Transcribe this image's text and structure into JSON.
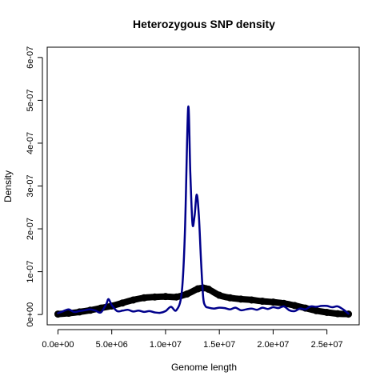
{
  "chart_data": {
    "type": "line",
    "title": "Heterozygous SNP density",
    "xlabel": "Genome length",
    "ylabel": "Density",
    "xlim": [
      -1000000,
      28000000
    ],
    "ylim": [
      -2.4e-08,
      6.24e-07
    ],
    "x_ticks": [
      0,
      5000000,
      10000000,
      15000000,
      20000000,
      25000000
    ],
    "x_tick_labels": [
      "0.0e+00",
      "5.0e+06",
      "1.0e+07",
      "1.5e+07",
      "2.0e+07",
      "2.5e+07"
    ],
    "y_ticks": [
      0,
      1e-07,
      2e-07,
      3e-07,
      4e-07,
      5e-07,
      6e-07
    ],
    "y_tick_labels": [
      "0e+00",
      "1e-07",
      "2e-07",
      "3e-07",
      "4e-07",
      "5e-07",
      "6e-07"
    ],
    "grid": false,
    "series": [
      {
        "color": "#00008B",
        "style": "thin-line",
        "x": [
          0,
          500000,
          1000000,
          1500000,
          2000000,
          2500000,
          3000000,
          3500000,
          4000000,
          4500000,
          4700000,
          5000000,
          5500000,
          6000000,
          6500000,
          7000000,
          7500000,
          8000000,
          8500000,
          9000000,
          9500000,
          10000000,
          10500000,
          11000000,
          11500000,
          11800000,
          12100000,
          12300000,
          12500000,
          12700000,
          12900000,
          13100000,
          13300000,
          13500000,
          13700000,
          14000000,
          14500000,
          15000000,
          15500000,
          16000000,
          16500000,
          17000000,
          17500000,
          18000000,
          18500000,
          19000000,
          19500000,
          20000000,
          20500000,
          21000000,
          21500000,
          22000000,
          22500000,
          23000000,
          23500000,
          24000000,
          24500000,
          25000000,
          25500000,
          26000000,
          26500000,
          27000000
        ],
        "y": [
          3e-09,
          8e-09,
          1.2e-08,
          6e-09,
          8e-09,
          1e-08,
          1.2e-08,
          9e-09,
          5e-09,
          2.5e-08,
          3.6e-08,
          2.2e-08,
          8e-09,
          9e-09,
          1.1e-08,
          7e-09,
          9e-09,
          6e-09,
          8e-09,
          5e-09,
          4e-09,
          8e-09,
          1.8e-08,
          1e-08,
          5e-08,
          1.9e-07,
          4.83e-07,
          3.3e-07,
          2.12e-07,
          2.3e-07,
          2.8e-07,
          2.3e-07,
          1.25e-07,
          4e-08,
          2e-08,
          1.6e-08,
          1.4e-08,
          1.6e-08,
          1.5e-08,
          1.2e-08,
          1.6e-08,
          1e-08,
          1.2e-08,
          1.4e-08,
          1.1e-08,
          1.6e-08,
          1.3e-08,
          1.7e-08,
          1.5e-08,
          1.9e-08,
          1e-08,
          8e-09,
          1.4e-08,
          1.2e-08,
          1.9e-08,
          1.8e-08,
          2e-08,
          2e-08,
          1.7e-08,
          1.9e-08,
          1.2e-08,
          2e-09
        ]
      },
      {
        "color": "#000000",
        "style": "thick-points",
        "x": [
          0,
          1000000,
          2000000,
          3000000,
          4000000,
          5000000,
          6000000,
          7000000,
          8000000,
          9000000,
          10000000,
          11000000,
          12000000,
          13000000,
          13500000,
          14000000,
          15000000,
          16000000,
          17000000,
          18000000,
          19000000,
          20000000,
          21000000,
          22000000,
          23000000,
          24000000,
          25000000,
          26000000,
          27000000
        ],
        "y": [
          1e-09,
          3e-09,
          6e-09,
          1e-08,
          1.5e-08,
          2e-08,
          2.7e-08,
          3.4e-08,
          3.9e-08,
          4.1e-08,
          4.2e-08,
          4.1e-08,
          4.8e-08,
          6e-08,
          6.2e-08,
          5.9e-08,
          4.5e-08,
          3.9e-08,
          3.6e-08,
          3.4e-08,
          3.1e-08,
          2.9e-08,
          2.6e-08,
          2.1e-08,
          1.5e-08,
          9e-09,
          5e-09,
          2e-09,
          1e-09
        ]
      }
    ]
  }
}
